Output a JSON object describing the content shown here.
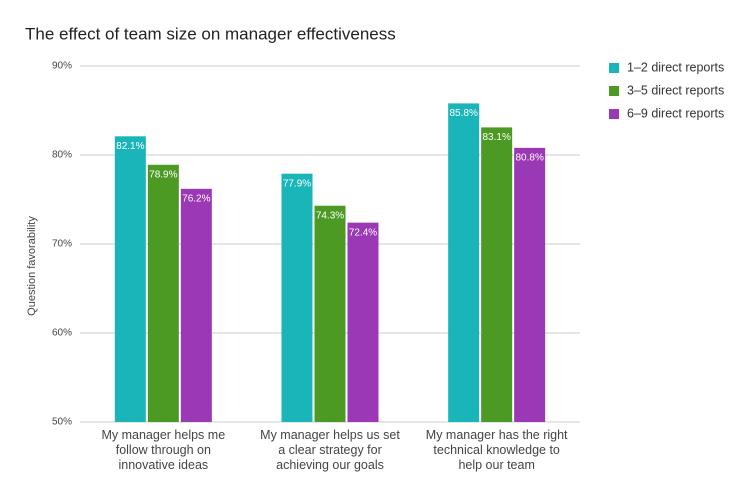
{
  "chart_data": {
    "type": "bar",
    "title": "The effect of team size on manager effectiveness",
    "y_label": "Question favorability",
    "categories": [
      "My manager helps me follow through on innovative ideas",
      "My manager helps us set a clear strategy for achieving our goals",
      "My manager has the right technical knowledge to help our team"
    ],
    "series": [
      {
        "name": "1–2 direct reports",
        "color": "#1ab5b8",
        "values": [
          82.1,
          77.9,
          85.8
        ],
        "value_labels": [
          "82.1%",
          "77.9%",
          "85.8%"
        ]
      },
      {
        "name": "3–5 direct reports",
        "color": "#4c9a24",
        "values": [
          78.9,
          74.3,
          83.1
        ],
        "value_labels": [
          "78.9%",
          "74.3%",
          "83.1%"
        ]
      },
      {
        "name": "6–9 direct reports",
        "color": "#9b38b5",
        "values": [
          76.2,
          72.4,
          80.8
        ],
        "value_labels": [
          "76.2%",
          "72.4%",
          "80.8%"
        ]
      }
    ],
    "ylim": [
      50,
      90
    ],
    "yticks": [
      {
        "value": 50,
        "label": "50%"
      },
      {
        "value": 60,
        "label": "60%"
      },
      {
        "value": 70,
        "label": "70%"
      },
      {
        "value": 80,
        "label": "80%"
      },
      {
        "value": 90,
        "label": "90%"
      }
    ],
    "grid": true,
    "legend": "right"
  }
}
